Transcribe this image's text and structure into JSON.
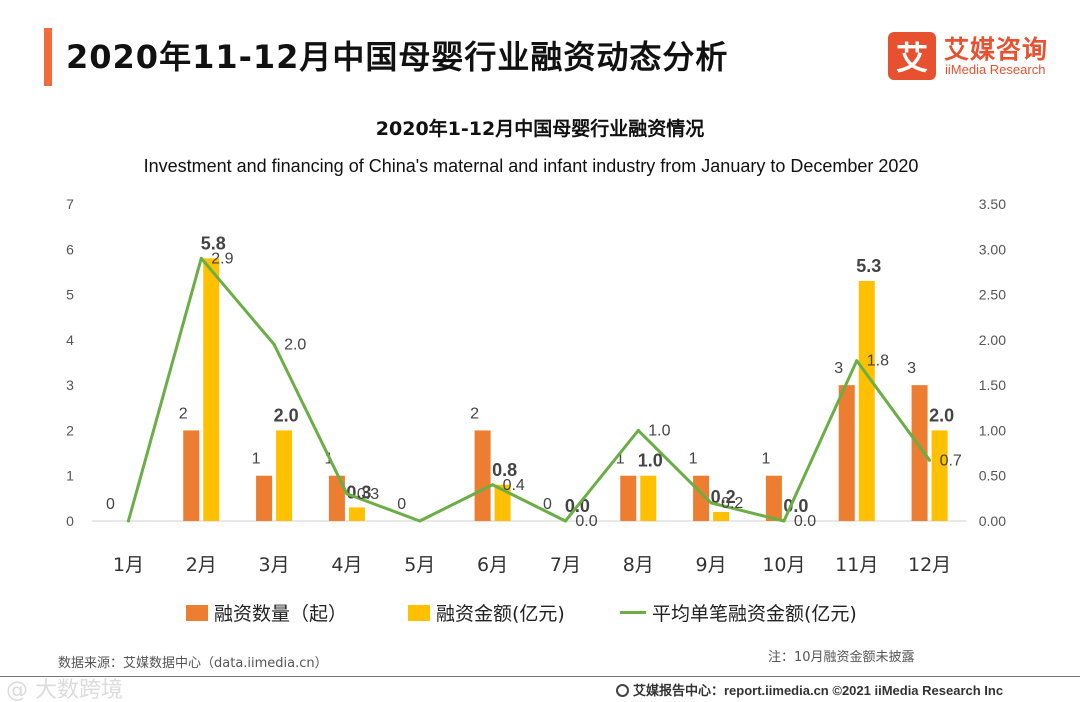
{
  "header": {
    "title": "2020年11-12月中国母婴行业融资动态分析",
    "logo_mark": "艾",
    "logo_cn": "艾媒咨询",
    "logo_en": "iiMedia Research"
  },
  "chart_data": {
    "type": "bar",
    "title": "2020年1-12月中国母婴行业融资情况",
    "subtitle": "Investment and financing of China's maternal and infant industry from January to December 2020",
    "categories": [
      "1月",
      "2月",
      "3月",
      "4月",
      "5月",
      "6月",
      "7月",
      "8月",
      "9月",
      "10月",
      "11月",
      "12月"
    ],
    "series": [
      {
        "name": "融资数量（起）",
        "type": "bar",
        "axis": "left",
        "color": "#ed7d31",
        "values": [
          0,
          2,
          1,
          1,
          0,
          2,
          0,
          1,
          1,
          1,
          3,
          3
        ],
        "labels": [
          "0",
          "2",
          "1",
          "1",
          "0",
          "2",
          "0",
          "1",
          "1",
          "1",
          "3",
          "3"
        ]
      },
      {
        "name": "融资金额(亿元)",
        "type": "bar",
        "axis": "left",
        "color": "#ffc000",
        "values": [
          null,
          5.8,
          2.0,
          0.3,
          null,
          0.8,
          0.0,
          1.0,
          0.2,
          0.0,
          5.3,
          2.0
        ],
        "labels": [
          "",
          "5.8",
          "2.0",
          "0.3",
          "",
          "0.8",
          "0.0",
          "1.0",
          "0.2",
          "0.0",
          "5.3",
          "2.0"
        ]
      },
      {
        "name": "平均单笔融资金额(亿元)",
        "type": "line",
        "axis": "right",
        "color": "#6aae45",
        "values": [
          0.0,
          2.9,
          1.95,
          0.3,
          0.0,
          0.4,
          0.0,
          1.0,
          0.2,
          0.0,
          1.77,
          0.67
        ],
        "labels": [
          "",
          "2.9",
          "2.0",
          "0.3",
          "",
          "0.4",
          "0.0",
          "1.0",
          "0.2",
          "0.0",
          "1.8",
          "0.7"
        ]
      }
    ],
    "y_left": {
      "ylim": [
        0,
        7
      ],
      "ticks": [
        "0",
        "1",
        "2",
        "3",
        "4",
        "5",
        "6",
        "7"
      ]
    },
    "y_right": {
      "ylim": [
        0,
        3.5
      ],
      "ticks": [
        "0.00",
        "0.50",
        "1.00",
        "1.50",
        "2.00",
        "2.50",
        "3.00",
        "3.50"
      ]
    },
    "grid": false,
    "legend_position": "bottom"
  },
  "footer": {
    "source": "数据来源：艾媒数据中心（data.iimedia.cn）",
    "note": "注：10月融资金额未披露",
    "credit": "艾媒报告中心：report.iimedia.cn   ©2021  iiMedia Research  Inc",
    "watermark": "@ 大数跨境"
  }
}
